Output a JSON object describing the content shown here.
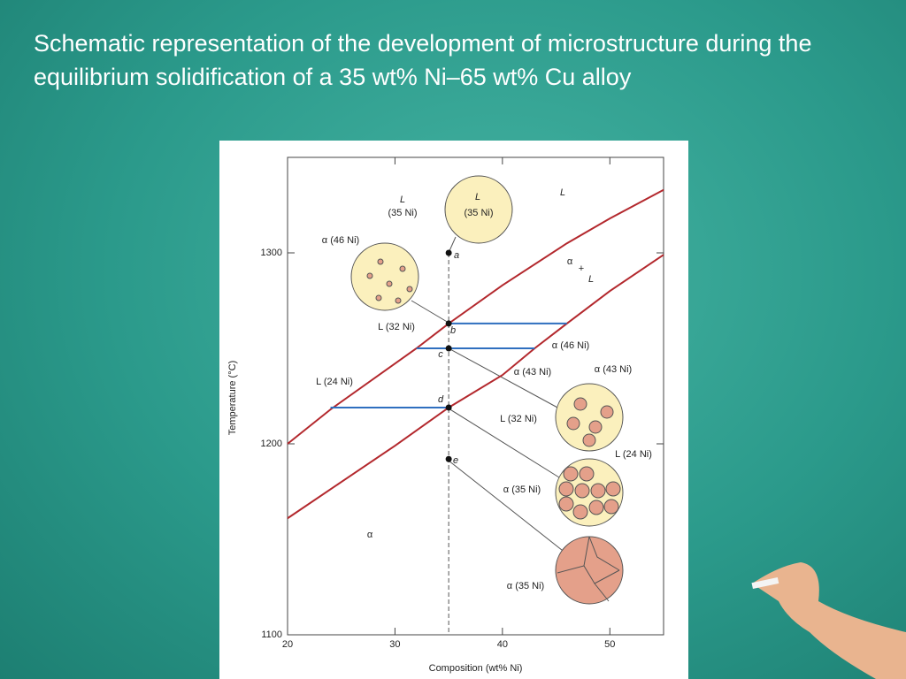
{
  "slide_title": "Schematic representation of the development of microstructure during the equilibrium solidification of a 35 wt% Ni–65 wt% Cu alloy",
  "chart_data": {
    "type": "line",
    "xlabel": "Composition (wt% Ni)",
    "ylabel": "Temperature (°C)",
    "xlim": [
      20,
      55
    ],
    "ylim": [
      1100,
      1350
    ],
    "xticks": [
      20,
      30,
      40,
      50
    ],
    "yticks": [
      1100,
      1200,
      1300
    ],
    "series": [
      {
        "color": "#b3282d",
        "x": [
          20,
          24,
          32,
          35,
          40,
          46,
          50,
          55
        ],
        "values": [
          1200,
          1218,
          1250,
          1263,
          1283,
          1305,
          1318,
          1333
        ]
      },
      {
        "color": "#b3282d",
        "x": [
          20,
          25,
          30,
          35,
          40,
          43,
          46,
          50,
          55
        ],
        "values": [
          1161,
          1180,
          1199,
          1219,
          1236,
          1250,
          1263,
          1280,
          1299
        ]
      },
      {
        "color": "#2f6fbf",
        "x": [
          35,
          46
        ],
        "values": [
          1263,
          1263
        ]
      },
      {
        "color": "#2f6fbf",
        "x": [
          32,
          43
        ],
        "values": [
          1250,
          1250
        ]
      },
      {
        "color": "#2f6fbf",
        "x": [
          24,
          35
        ],
        "values": [
          1219,
          1219
        ]
      }
    ],
    "points": {
      "x": [
        35,
        35,
        35,
        35,
        35
      ],
      "values": [
        1300,
        1263,
        1250,
        1219,
        1192
      ]
    },
    "annotations": [
      "L",
      "(35 Ni)",
      "L",
      "(35 Ni)",
      "α (46 Ni)",
      "a",
      "b",
      "c",
      "d",
      "e",
      "L (32 Ni)",
      "α (46 Ni)",
      "α (43 Ni)",
      "α (43 Ni)",
      "L (24 Ni)",
      "L (32 Ni)",
      "L (24 Ni)",
      "α (35 Ni)",
      "α (35 Ni)",
      "L",
      "α",
      "+",
      "L",
      "α"
    ]
  }
}
